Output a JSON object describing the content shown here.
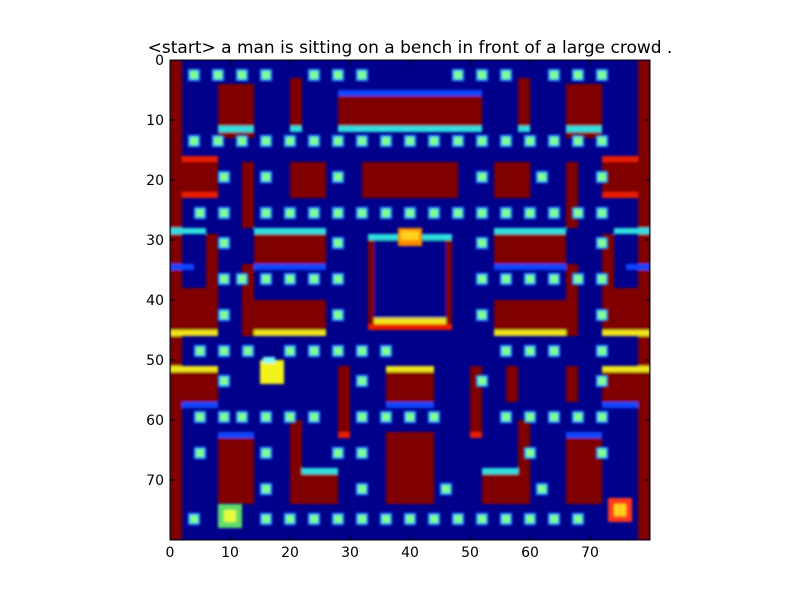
{
  "figure": {
    "title": "<start> a man is sitting on a bench in front of a large crowd ."
  },
  "axes": {
    "x_ticks": [
      {
        "value": 0,
        "label": "0"
      },
      {
        "value": 10,
        "label": "10"
      },
      {
        "value": 20,
        "label": "20"
      },
      {
        "value": 30,
        "label": "30"
      },
      {
        "value": 40,
        "label": "40"
      },
      {
        "value": 50,
        "label": "50"
      },
      {
        "value": 60,
        "label": "60"
      },
      {
        "value": 70,
        "label": "70"
      }
    ],
    "y_ticks": [
      {
        "value": 0,
        "label": "0"
      },
      {
        "value": 10,
        "label": "10"
      },
      {
        "value": 20,
        "label": "20"
      },
      {
        "value": 30,
        "label": "30"
      },
      {
        "value": 40,
        "label": "40"
      },
      {
        "value": 50,
        "label": "50"
      },
      {
        "value": 60,
        "label": "60"
      },
      {
        "value": 70,
        "label": "70"
      }
    ],
    "x_range": [
      0,
      80
    ],
    "y_range": [
      0,
      80
    ],
    "y_inverted": true
  },
  "game": {
    "colormap": "jet",
    "colors": {
      "background": "#00008b",
      "wall": "#800000",
      "wall_edge": "#e81c00",
      "wall_edge_cyan": "#2de0e0",
      "wall_edge_yellow": "#f2e51a",
      "wall_edge_blue": "#0a44ff",
      "pellet": "#7fff8c",
      "pellet_glow": "#2b95ff",
      "ghost_house": "#00008b"
    },
    "pellet_columns": [
      4,
      8,
      12,
      16,
      20,
      24,
      28,
      32,
      36,
      40,
      44,
      48,
      52,
      56,
      60,
      64,
      68,
      72
    ],
    "pellet_rows": [
      2.5,
      13.5,
      25.5,
      36.5,
      48.5,
      59.5,
      76.5
    ]
  }
}
